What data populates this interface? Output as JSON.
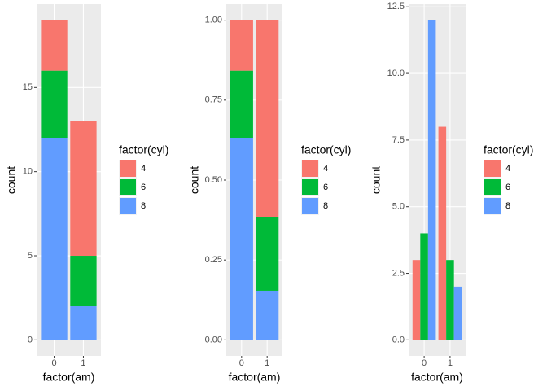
{
  "chart_data": [
    {
      "type": "bar",
      "position": "stack",
      "x_label": "factor(am)",
      "y_label": "count",
      "legend_title": "factor(cyl)",
      "categories": [
        "0",
        "1"
      ],
      "series": [
        {
          "name": "4",
          "color": "#F8766D",
          "values": [
            3,
            8
          ]
        },
        {
          "name": "6",
          "color": "#00BA38",
          "values": [
            4,
            3
          ]
        },
        {
          "name": "8",
          "color": "#619CFF",
          "values": [
            12,
            2
          ]
        }
      ],
      "ylim": [
        -0.95,
        19.95
      ],
      "yticks": [
        0,
        5,
        10,
        15
      ],
      "grid": true
    },
    {
      "type": "bar",
      "position": "fill",
      "x_label": "factor(am)",
      "y_label": "count",
      "legend_title": "factor(cyl)",
      "categories": [
        "0",
        "1"
      ],
      "series": [
        {
          "name": "4",
          "color": "#F8766D",
          "values": [
            0.1579,
            0.6154
          ]
        },
        {
          "name": "6",
          "color": "#00BA38",
          "values": [
            0.2105,
            0.2308
          ]
        },
        {
          "name": "8",
          "color": "#619CFF",
          "values": [
            0.6316,
            0.1538
          ]
        }
      ],
      "ylim": [
        -0.05,
        1.05
      ],
      "yticks": [
        {
          "value": 0,
          "label": "0.00"
        },
        {
          "value": 0.25,
          "label": "0.25"
        },
        {
          "value": 0.5,
          "label": "0.50"
        },
        {
          "value": 0.75,
          "label": "0.75"
        },
        {
          "value": 1,
          "label": "1.00"
        }
      ],
      "grid": true
    },
    {
      "type": "bar",
      "position": "dodge",
      "x_label": "factor(am)",
      "y_label": "count",
      "legend_title": "factor(cyl)",
      "categories": [
        "0",
        "1"
      ],
      "series": [
        {
          "name": "4",
          "color": "#F8766D",
          "values": [
            3,
            8
          ]
        },
        {
          "name": "6",
          "color": "#00BA38",
          "values": [
            4,
            3
          ]
        },
        {
          "name": "8",
          "color": "#619CFF",
          "values": [
            12,
            2
          ]
        }
      ],
      "ylim": [
        -0.6,
        12.6
      ],
      "yticks": [
        {
          "value": 0,
          "label": "0.0"
        },
        {
          "value": 2.5,
          "label": "2.5"
        },
        {
          "value": 5,
          "label": "5.0"
        },
        {
          "value": 7.5,
          "label": "7.5"
        },
        {
          "value": 10,
          "label": "10.0"
        },
        {
          "value": 12.5,
          "label": "12.5"
        }
      ],
      "grid": true
    }
  ]
}
